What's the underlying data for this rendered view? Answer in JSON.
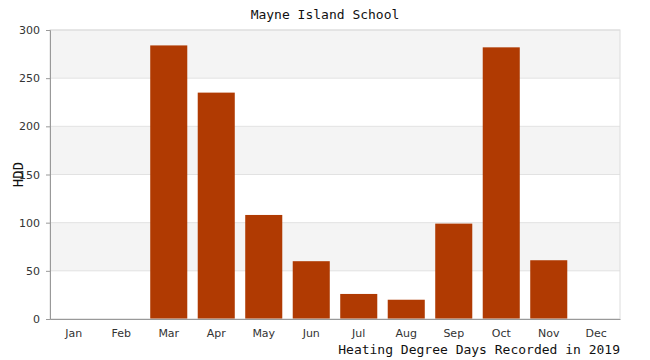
{
  "chart_data": {
    "type": "bar",
    "title": "Mayne Island School",
    "y_label": "HDD",
    "x_label": "Heating Degree Days Recorded in 2019",
    "categories": [
      "Jan",
      "Feb",
      "Mar",
      "Apr",
      "May",
      "Jun",
      "Jul",
      "Aug",
      "Sep",
      "Oct",
      "Nov",
      "Dec"
    ],
    "values": [
      null,
      null,
      284,
      235,
      108,
      60,
      26,
      20,
      99,
      282,
      61,
      null
    ],
    "color": "#b03a02",
    "ylim": [
      0,
      300
    ],
    "yticks": [
      0,
      50,
      100,
      150,
      200,
      250,
      300
    ],
    "grid": true
  }
}
